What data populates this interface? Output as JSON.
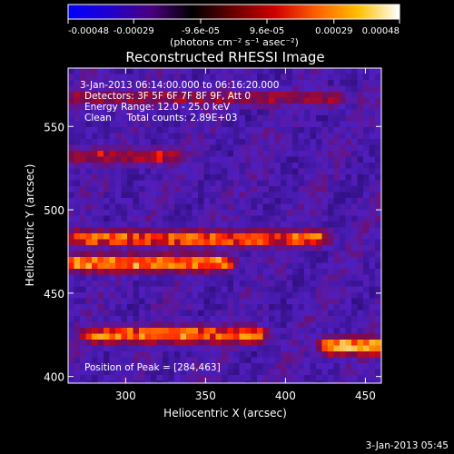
{
  "colorbar": {
    "tick_labels": [
      "-0.00048",
      "-0.00029",
      "-9.6e-05",
      "9.6e-05",
      "0.00029",
      "0.00048"
    ],
    "tick_values": [
      -0.00048,
      -0.00029,
      -9.6e-05,
      9.6e-05,
      0.00029,
      0.00048
    ],
    "range": [
      -0.00048,
      0.00048
    ],
    "unit_label": "(photons cm⁻² s⁻¹ asec⁻²)",
    "colors": [
      "#0000ff",
      "#2200cc",
      "#4a0080",
      "#000000",
      "#6a0000",
      "#d00000",
      "#ff6000",
      "#ffc000",
      "#ffffff"
    ]
  },
  "chart_data": {
    "type": "heatmap",
    "title": "Reconstructed RHESSI Image",
    "xlabel": "Heliocentric X (arcsec)",
    "ylabel": "Heliocentric Y (arcsec)",
    "xlim": [
      264,
      460
    ],
    "ylim": [
      396,
      585
    ],
    "x_ticks": [
      300,
      350,
      400,
      450
    ],
    "y_ticks": [
      400,
      450,
      500,
      550
    ],
    "annotations": {
      "time_range": "3-Jan-2013 06:14:00.000 to 06:16:20.000",
      "detectors": "Detectors: 3F 5F 6F 7F 8F 9F, Att 0",
      "energy": "Energy Range: 12.0 - 25.0 keV",
      "method": "Clean     Total counts: 2.89E+03",
      "peak": "Position of Peak = [284,463]"
    },
    "peak_position": [
      284,
      463
    ],
    "bright_bands": [
      {
        "y": 567,
        "x_from": 268,
        "x_to": 430,
        "level": 0.55
      },
      {
        "y": 532,
        "x_from": 268,
        "x_to": 330,
        "level": 0.6
      },
      {
        "y": 483,
        "x_from": 268,
        "x_to": 420,
        "level": 0.75
      },
      {
        "y": 468,
        "x_from": 268,
        "x_to": 360,
        "level": 0.85
      },
      {
        "y": 425,
        "x_from": 280,
        "x_to": 380,
        "level": 0.8
      },
      {
        "y": 418,
        "x_from": 430,
        "x_to": 458,
        "level": 0.9
      }
    ]
  },
  "footer": {
    "timestamp": "3-Jan-2013 05:45"
  }
}
